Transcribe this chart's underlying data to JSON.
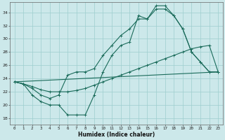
{
  "xlabel": "Humidex (Indice chaleur)",
  "bg_color": "#cce8ea",
  "line_color": "#1a6b5a",
  "grid_color": "#9ecece",
  "x_min": -0.5,
  "x_max": 23.5,
  "y_min": 17,
  "y_max": 35.5,
  "yticks": [
    18,
    20,
    22,
    24,
    26,
    28,
    30,
    32,
    34
  ],
  "xticks": [
    0,
    1,
    2,
    3,
    4,
    5,
    6,
    7,
    8,
    9,
    10,
    11,
    12,
    13,
    14,
    15,
    16,
    17,
    18,
    19,
    20,
    21,
    22,
    23
  ],
  "line1_x": [
    0,
    1,
    2,
    3,
    4,
    5,
    6,
    7,
    8,
    9,
    10,
    11,
    12,
    13,
    14,
    15,
    16,
    17,
    18,
    19,
    20,
    21,
    22,
    23
  ],
  "line1_y": [
    23.5,
    23.2,
    21.5,
    20.5,
    20.0,
    20.0,
    18.5,
    18.5,
    18.5,
    21.5,
    25.0,
    27.5,
    29.0,
    29.5,
    33.5,
    33.0,
    35.0,
    35.0,
    33.5,
    31.5,
    28.0,
    26.5,
    25.0,
    25.0
  ],
  "line2_x": [
    0,
    1,
    2,
    3,
    4,
    5,
    6,
    7,
    8,
    9,
    10,
    11,
    12,
    13,
    14,
    15,
    16,
    17,
    18,
    19,
    20,
    21,
    22,
    23
  ],
  "line2_y": [
    23.5,
    23.2,
    22.5,
    21.5,
    21.0,
    21.5,
    24.5,
    25.0,
    25.0,
    25.5,
    27.5,
    29.0,
    30.5,
    31.5,
    33.0,
    33.0,
    34.5,
    34.5,
    33.5,
    31.5,
    28.0,
    26.5,
    25.0,
    25.0
  ],
  "line3_x": [
    0,
    1,
    2,
    3,
    4,
    5,
    6,
    7,
    8,
    9,
    10,
    11,
    12,
    13,
    14,
    15,
    16,
    17,
    18,
    19,
    20,
    21,
    22,
    23
  ],
  "line3_y": [
    23.5,
    23.2,
    22.8,
    22.3,
    22.0,
    22.0,
    22.0,
    22.2,
    22.5,
    23.0,
    23.5,
    24.0,
    24.5,
    25.0,
    25.5,
    26.0,
    26.5,
    27.0,
    27.5,
    28.0,
    28.5,
    28.8,
    29.0,
    25.0
  ],
  "line4_x": [
    0,
    23
  ],
  "line4_y": [
    23.5,
    25.0
  ]
}
